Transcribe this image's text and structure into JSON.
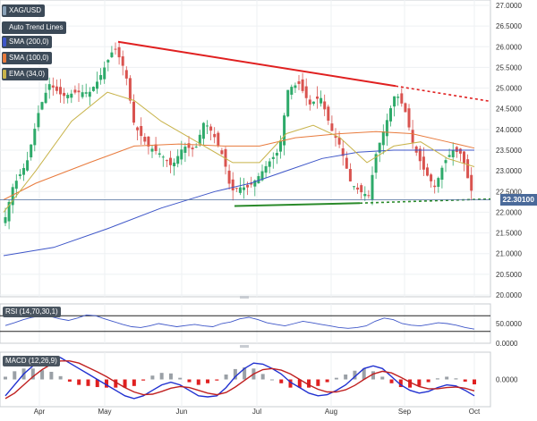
{
  "chart_data": {
    "type": "candlestick",
    "symbol": "XAG/USD",
    "price_axis": {
      "ticks": [
        "27.0000",
        "26.5000",
        "26.0000",
        "25.5000",
        "25.0000",
        "24.5000",
        "24.0000",
        "23.5000",
        "23.0000",
        "22.5000",
        "22.0000",
        "21.5000",
        "21.0000",
        "20.5000",
        "20.0000"
      ],
      "ylim": [
        20.0,
        27.0
      ]
    },
    "x_axis": {
      "labels": [
        "Apr",
        "May",
        "Jun",
        "Jul",
        "Aug",
        "Sep",
        "Oct"
      ]
    },
    "current_price": "22.30100",
    "indicators": [
      {
        "label": "Auto Trend Lines",
        "color": "#3c4a58"
      },
      {
        "label": "SMA (200,0)",
        "color": "#3e56c8"
      },
      {
        "label": "SMA (100,0)",
        "color": "#e87a3c"
      },
      {
        "label": "EMA (34,0)",
        "color": "#c8b34a"
      }
    ],
    "trend_lines": {
      "resistance": {
        "from": [
          "May",
          26.12
        ],
        "to": [
          "Sep",
          25.05
        ],
        "color": "#e02020"
      },
      "support": {
        "from": [
          "Jul",
          22.15
        ],
        "to": [
          "Aug",
          22.22
        ],
        "color": "#2a8a2a"
      }
    },
    "rsi": {
      "label": "RSI (14,70,30,1)",
      "ticks": [
        "50.0000",
        "0.0000"
      ],
      "levels": [
        70,
        30
      ],
      "values": [
        45,
        52,
        60,
        66,
        70,
        68,
        62,
        58,
        64,
        72,
        70,
        62,
        55,
        48,
        42,
        40,
        44,
        50,
        46,
        42,
        45,
        48,
        44,
        42,
        50,
        54,
        62,
        66,
        60,
        52,
        48,
        44,
        50,
        56,
        52,
        48,
        44,
        40,
        38,
        40,
        44,
        56,
        64,
        60,
        50,
        46,
        44,
        48,
        52,
        50,
        46,
        40,
        36
      ]
    },
    "macd": {
      "label": "MACD (12,26,9)",
      "ticks": [
        "0.0000"
      ],
      "macd_line": [
        -0.3,
        -0.1,
        0.1,
        0.25,
        0.35,
        0.42,
        0.4,
        0.3,
        0.2,
        0.1,
        0.0,
        -0.1,
        -0.2,
        -0.3,
        -0.35,
        -0.3,
        -0.2,
        -0.1,
        -0.05,
        -0.1,
        -0.2,
        -0.3,
        -0.32,
        -0.3,
        -0.15,
        0.05,
        0.2,
        0.3,
        0.28,
        0.2,
        0.1,
        -0.05,
        -0.15,
        -0.25,
        -0.3,
        -0.28,
        -0.2,
        -0.1,
        0.05,
        0.2,
        0.25,
        0.2,
        0.05,
        -0.1,
        -0.2,
        -0.25,
        -0.22,
        -0.15,
        -0.1,
        -0.12,
        -0.2,
        -0.3
      ],
      "signal_line": [
        -0.35,
        -0.25,
        -0.1,
        0.05,
        0.18,
        0.28,
        0.34,
        0.34,
        0.3,
        0.22,
        0.14,
        0.05,
        -0.05,
        -0.15,
        -0.23,
        -0.28,
        -0.27,
        -0.22,
        -0.16,
        -0.13,
        -0.15,
        -0.2,
        -0.25,
        -0.28,
        -0.24,
        -0.14,
        -0.02,
        0.1,
        0.18,
        0.2,
        0.17,
        0.1,
        0.0,
        -0.1,
        -0.18,
        -0.23,
        -0.23,
        -0.19,
        -0.11,
        0.0,
        0.1,
        0.15,
        0.12,
        0.04,
        -0.05,
        -0.13,
        -0.17,
        -0.17,
        -0.15,
        -0.14,
        -0.16,
        -0.21
      ]
    }
  }
}
